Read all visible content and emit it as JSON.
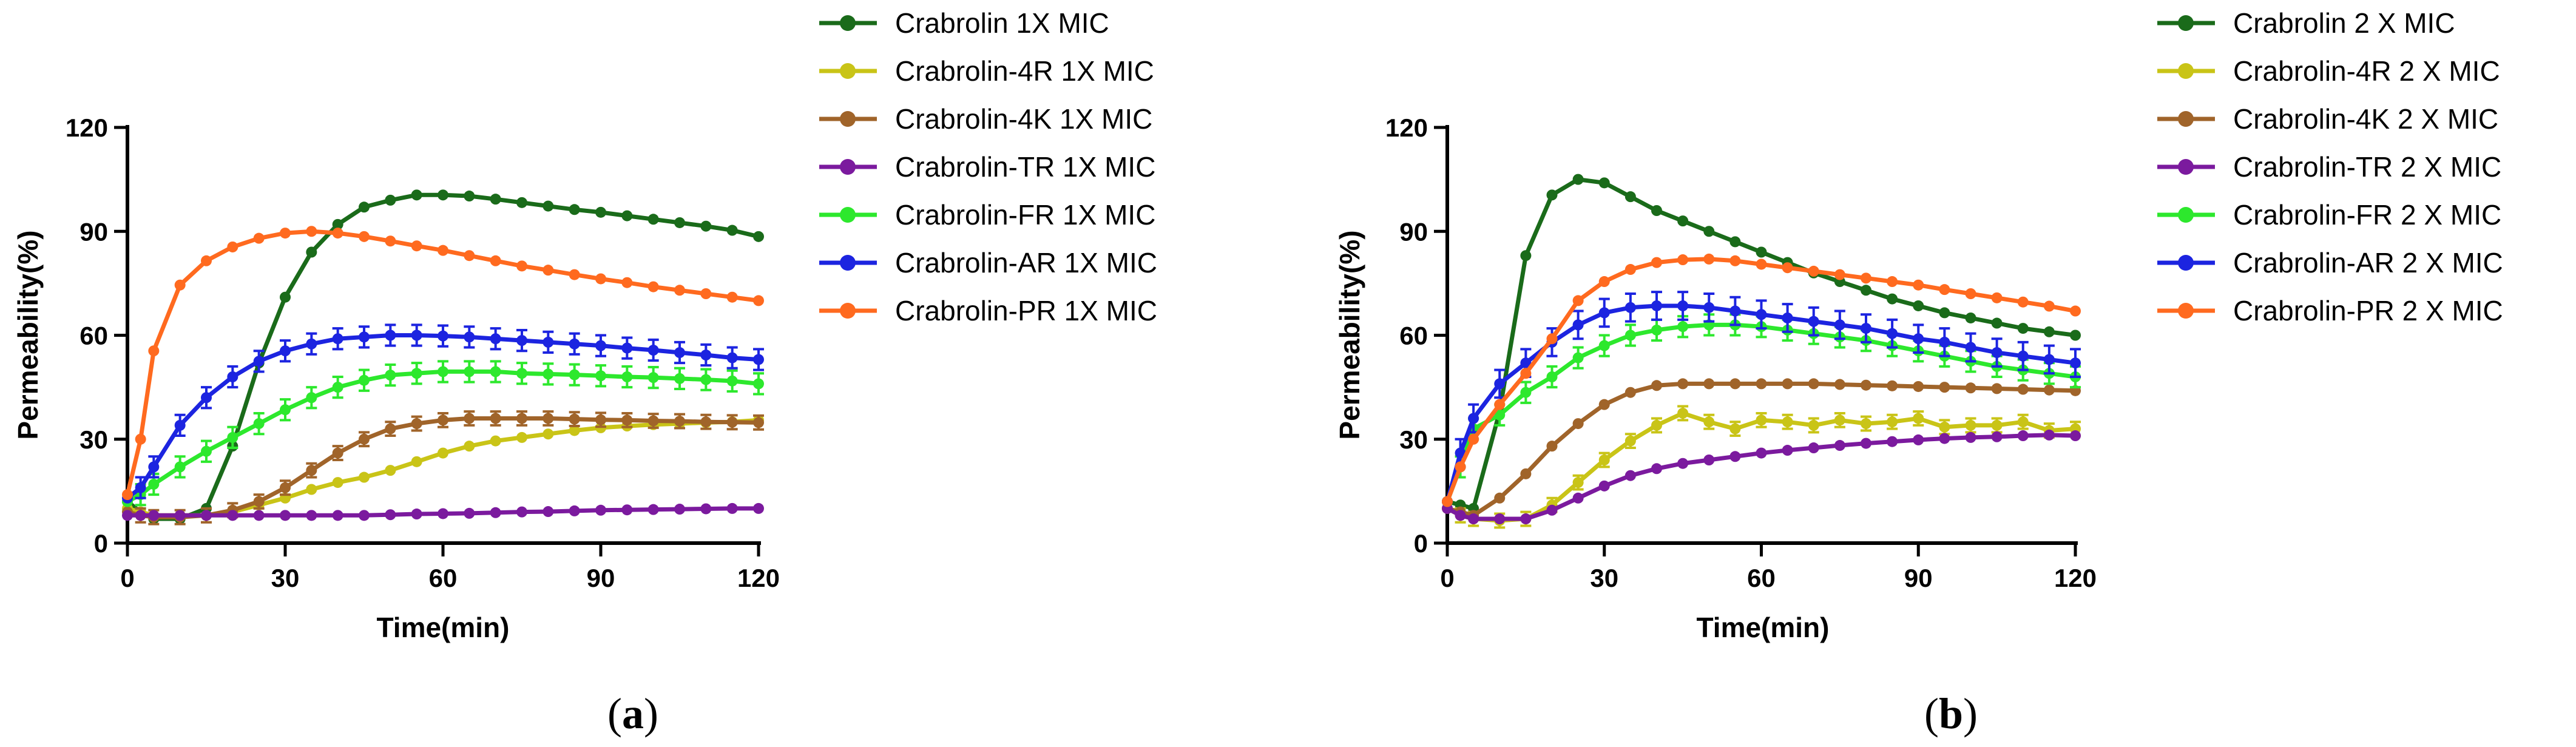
{
  "chart_data": [
    {
      "type": "line",
      "panel_label": "a",
      "xlabel": "Time(min)",
      "ylabel": "Permeability(%)",
      "xlim": [
        0,
        120
      ],
      "ylim": [
        0,
        120
      ],
      "xticks": [
        0,
        30,
        60,
        90,
        120
      ],
      "yticks": [
        0,
        30,
        60,
        90,
        120
      ],
      "legend_position": "right",
      "x": [
        0,
        2.5,
        5,
        10,
        15,
        20,
        25,
        30,
        35,
        40,
        45,
        50,
        55,
        60,
        65,
        70,
        75,
        80,
        85,
        90,
        95,
        100,
        105,
        110,
        115,
        120
      ],
      "series": [
        {
          "name": "Crabrolin 1X MIC",
          "color": "#1a6b1a",
          "error": 0,
          "values": [
            12,
            9,
            7,
            7,
            10,
            28,
            52,
            71,
            84,
            92,
            97,
            99,
            100.5,
            100.5,
            100.2,
            99.3,
            98.3,
            97.3,
            96.3,
            95.5,
            94.5,
            93.5,
            92.5,
            91.5,
            90.3,
            88.5
          ]
        },
        {
          "name": "Crabrolin-4R 1X MIC",
          "color": "#c9c417",
          "error": 0,
          "values": [
            10,
            9,
            8,
            8,
            8,
            9,
            11,
            13,
            15.5,
            17.5,
            19,
            21,
            23.5,
            26,
            28,
            29.5,
            30.5,
            31.5,
            32.5,
            33.3,
            33.8,
            34.2,
            34.5,
            34.8,
            35,
            35.5
          ]
        },
        {
          "name": "Crabrolin-4K 1X MIC",
          "color": "#a0642a",
          "error": 2,
          "values": [
            9,
            8,
            7.5,
            7.5,
            8,
            9.5,
            12,
            16,
            21,
            26,
            30,
            33,
            34.5,
            35.5,
            36,
            36,
            36,
            36,
            35.8,
            35.6,
            35.5,
            35.3,
            35.2,
            35,
            34.9,
            34.8
          ]
        },
        {
          "name": "Crabrolin-TR 1X MIC",
          "color": "#7b1a9e",
          "error": 0,
          "values": [
            8,
            8,
            8,
            8,
            8,
            8,
            8,
            8,
            8,
            8,
            8,
            8.2,
            8.4,
            8.5,
            8.6,
            8.8,
            9,
            9.1,
            9.3,
            9.5,
            9.6,
            9.7,
            9.8,
            9.9,
            10,
            10
          ]
        },
        {
          "name": "Crabrolin-FR 1X MIC",
          "color": "#2de82d",
          "error": 3,
          "values": [
            12,
            14,
            17,
            22,
            26.5,
            30.5,
            34.5,
            38.5,
            42,
            45,
            47,
            48.5,
            49,
            49.5,
            49.5,
            49.5,
            49,
            48.8,
            48.6,
            48.3,
            48,
            47.8,
            47.5,
            47.2,
            46.8,
            46
          ]
        },
        {
          "name": "Crabrolin-AR 1X MIC",
          "color": "#1c24e0",
          "error": 3,
          "values": [
            13,
            16,
            22,
            34,
            42,
            48,
            52.5,
            55.5,
            57.5,
            59,
            59.5,
            60,
            60,
            59.8,
            59.5,
            59,
            58.5,
            58,
            57.5,
            57,
            56.3,
            55.7,
            55,
            54.3,
            53.5,
            53
          ]
        },
        {
          "name": "Crabrolin-PR 1X MIC",
          "color": "#ff6a1f",
          "error": 0,
          "values": [
            14,
            30,
            55.5,
            74.5,
            81.5,
            85.5,
            88,
            89.5,
            90,
            89.5,
            88.5,
            87.2,
            85.8,
            84.5,
            83,
            81.5,
            80,
            78.8,
            77.5,
            76.3,
            75.2,
            74,
            73,
            72,
            71,
            70
          ]
        }
      ]
    },
    {
      "type": "line",
      "panel_label": "b",
      "xlabel": "Time(min)",
      "ylabel": "Permeability(%)",
      "xlim": [
        0,
        120
      ],
      "ylim": [
        0,
        120
      ],
      "xticks": [
        0,
        30,
        60,
        90,
        120
      ],
      "yticks": [
        0,
        30,
        60,
        90,
        120
      ],
      "legend_position": "right",
      "x": [
        0,
        2.5,
        5,
        10,
        15,
        20,
        25,
        30,
        35,
        40,
        45,
        50,
        55,
        60,
        65,
        70,
        75,
        80,
        85,
        90,
        95,
        100,
        105,
        110,
        115,
        120
      ],
      "series": [
        {
          "name": "Crabrolin 2 X MIC",
          "color": "#1a6b1a",
          "error": 0,
          "values": [
            12,
            11,
            10,
            38,
            83,
            100.5,
            105,
            104,
            100,
            96,
            93,
            90,
            87,
            84,
            81,
            78,
            75.5,
            73,
            70.5,
            68.5,
            66.5,
            65,
            63.5,
            62,
            61,
            60
          ]
        },
        {
          "name": "Crabrolin-4R  2 X MIC",
          "color": "#c9c417",
          "error": 2,
          "values": [
            10,
            8,
            7,
            6.5,
            7,
            11,
            17.5,
            24,
            29.5,
            34,
            37.5,
            35,
            33,
            35.5,
            35,
            34,
            35.5,
            34.5,
            35,
            36,
            33.5,
            34,
            34,
            35,
            32.5,
            33
          ]
        },
        {
          "name": "Crabrolin-4K 2 X MIC",
          "color": "#a0642a",
          "error": 0,
          "values": [
            10,
            9,
            8,
            13,
            20,
            28,
            34.5,
            40,
            43.5,
            45.5,
            46,
            46,
            46,
            46,
            46,
            46,
            45.8,
            45.6,
            45.4,
            45.2,
            45,
            44.8,
            44.6,
            44.4,
            44.2,
            44
          ]
        },
        {
          "name": "Crabrolin-TR 2 X MIC",
          "color": "#7b1a9e",
          "error": 0,
          "values": [
            10,
            8,
            7,
            7,
            7,
            9.5,
            13,
            16.5,
            19.5,
            21.5,
            23,
            24,
            25,
            26,
            26.8,
            27.5,
            28.2,
            28.8,
            29.3,
            29.8,
            30.2,
            30.5,
            30.7,
            31,
            31.2,
            31
          ]
        },
        {
          "name": "Crabrolin-FR 2 X MIC",
          "color": "#2de82d",
          "error": 3,
          "values": [
            12,
            22,
            33,
            37,
            43.5,
            48,
            53.5,
            57,
            60,
            61.5,
            62.5,
            63,
            63,
            62.5,
            61.5,
            60.5,
            59.5,
            58.5,
            57,
            55.5,
            54,
            52.5,
            51,
            50,
            49,
            48
          ]
        },
        {
          "name": "Crabrolin-AR 2 X MIC",
          "color": "#1c24e0",
          "error": 4,
          "values": [
            12,
            26,
            36,
            46,
            52,
            58,
            63,
            66.5,
            68,
            68.5,
            68.5,
            68,
            67,
            66,
            65,
            64,
            63,
            62,
            60.5,
            59,
            58,
            56.5,
            55,
            54,
            53,
            52
          ]
        },
        {
          "name": "Crabrolin-PR 2 X MIC",
          "color": "#ff6a1f",
          "error": 0,
          "values": [
            12,
            22,
            30,
            40,
            49,
            59,
            70,
            75.5,
            79,
            81,
            81.8,
            82,
            81.5,
            80.5,
            79.5,
            78.5,
            77.5,
            76.5,
            75.5,
            74.5,
            73.2,
            72,
            70.8,
            69.6,
            68.4,
            67
          ]
        }
      ]
    }
  ]
}
